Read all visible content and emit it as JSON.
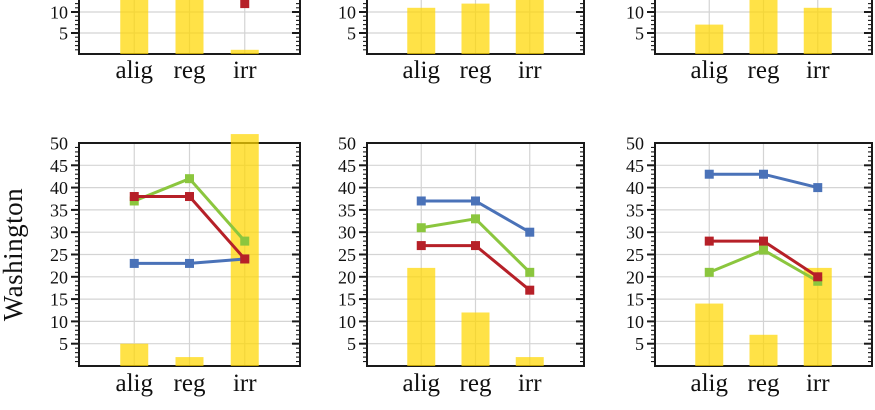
{
  "figure": {
    "row_label": "Washington",
    "categories": [
      "alig",
      "reg",
      "irr"
    ],
    "colors": {
      "bar": "#FFD700",
      "blue": "#4A72B8",
      "green": "#8BC63E",
      "red": "#B62028",
      "grid": "#D4D4D4",
      "axis": "#1A1A1A",
      "text": "#111111"
    },
    "bar_opacity": 0.72,
    "y_axis": {
      "min": 0,
      "max": 50,
      "major_step": 5,
      "minor_step": 1
    }
  },
  "chart_data": [
    {
      "position": "top-left",
      "type": "bar+line",
      "cropped_top": true,
      "categories": [
        "alig",
        "reg",
        "irr"
      ],
      "bar_values": [
        16,
        16,
        1
      ],
      "bars_clipped_at_top": [
        true,
        true,
        false
      ],
      "series": [
        {
          "name": "red",
          "values": [
            38,
            38,
            12
          ],
          "offscreen_points": [
            true,
            true,
            false
          ]
        }
      ],
      "ylim": [
        0,
        50
      ],
      "y_tick_labels": [
        5,
        10
      ]
    },
    {
      "position": "top-middle",
      "type": "bar",
      "cropped_top": true,
      "categories": [
        "alig",
        "reg",
        "irr"
      ],
      "bar_values": [
        11,
        12,
        16
      ],
      "bars_clipped_at_top": [
        false,
        false,
        true
      ],
      "series": [],
      "ylim": [
        0,
        50
      ],
      "y_tick_labels": [
        5,
        10
      ]
    },
    {
      "position": "top-right",
      "type": "bar",
      "cropped_top": true,
      "categories": [
        "alig",
        "reg",
        "irr"
      ],
      "bar_values": [
        7,
        16,
        11
      ],
      "bars_clipped_at_top": [
        false,
        true,
        false
      ],
      "series": [],
      "ylim": [
        0,
        50
      ],
      "y_tick_labels": [
        5,
        10
      ]
    },
    {
      "position": "bottom-left",
      "type": "bar+line",
      "row_label": "Washington",
      "categories": [
        "alig",
        "reg",
        "irr"
      ],
      "bar_values": [
        5,
        2,
        52
      ],
      "bars_clipped_at_top": [
        false,
        false,
        false
      ],
      "series": [
        {
          "name": "blue",
          "values": [
            23,
            23,
            24
          ]
        },
        {
          "name": "green",
          "values": [
            37,
            42,
            28
          ]
        },
        {
          "name": "red",
          "values": [
            38,
            38,
            24
          ]
        }
      ],
      "ylim": [
        0,
        50
      ],
      "y_tick_labels": [
        5,
        10,
        15,
        20,
        25,
        30,
        35,
        40,
        45,
        50
      ]
    },
    {
      "position": "bottom-middle",
      "type": "bar+line",
      "categories": [
        "alig",
        "reg",
        "irr"
      ],
      "bar_values": [
        22,
        12,
        2
      ],
      "bars_clipped_at_top": [
        false,
        false,
        false
      ],
      "series": [
        {
          "name": "blue",
          "values": [
            37,
            37,
            30
          ]
        },
        {
          "name": "green",
          "values": [
            31,
            33,
            21
          ]
        },
        {
          "name": "red",
          "values": [
            27,
            27,
            17
          ]
        }
      ],
      "ylim": [
        0,
        50
      ],
      "y_tick_labels": [
        5,
        10,
        15,
        20,
        25,
        30,
        35,
        40,
        45,
        50
      ]
    },
    {
      "position": "bottom-right",
      "type": "bar+line",
      "categories": [
        "alig",
        "reg",
        "irr"
      ],
      "bar_values": [
        14,
        7,
        22
      ],
      "bars_clipped_at_top": [
        false,
        false,
        false
      ],
      "series": [
        {
          "name": "blue",
          "values": [
            43,
            43,
            40
          ]
        },
        {
          "name": "green",
          "values": [
            21,
            26,
            19
          ]
        },
        {
          "name": "red",
          "values": [
            28,
            28,
            20
          ]
        }
      ],
      "ylim": [
        0,
        50
      ],
      "y_tick_labels": [
        5,
        10,
        15,
        20,
        25,
        30,
        35,
        40,
        45,
        50
      ]
    }
  ]
}
